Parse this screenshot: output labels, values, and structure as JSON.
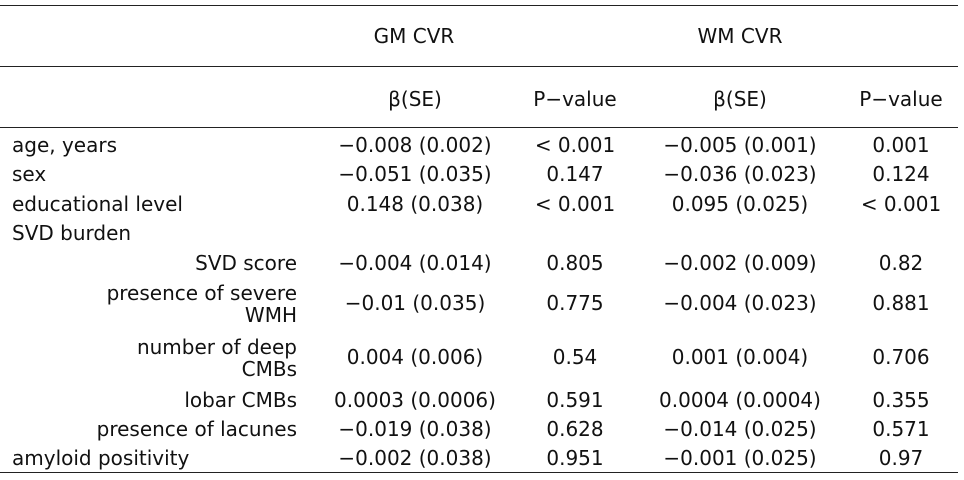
{
  "table": {
    "group_headers": [
      "GM CVR",
      "WM CVR"
    ],
    "sub_headers": [
      "β(SE)",
      "P−value",
      "β(SE)",
      "P−value"
    ],
    "rows": [
      {
        "label": "age, years",
        "gm_beta": "−0.008 (0.002)",
        "gm_p": "< 0.001",
        "wm_beta": "−0.005 (0.001)",
        "wm_p": "0.001"
      },
      {
        "label": "sex",
        "gm_beta": "−0.051 (0.035)",
        "gm_p": "0.147",
        "wm_beta": "−0.036 (0.023)",
        "wm_p": "0.124"
      },
      {
        "label": "educational level",
        "gm_beta": "0.148 (0.038)",
        "gm_p": "< 0.001",
        "wm_beta": "0.095 (0.025)",
        "wm_p": "< 0.001"
      },
      {
        "label": "SVD burden",
        "gm_beta": "",
        "gm_p": "",
        "wm_beta": "",
        "wm_p": ""
      },
      {
        "label": "SVD score",
        "gm_beta": "−0.004 (0.014)",
        "gm_p": "0.805",
        "wm_beta": "−0.002 (0.009)",
        "wm_p": "0.82"
      },
      {
        "label": "presence of severe WMH",
        "gm_beta": "−0.01 (0.035)",
        "gm_p": "0.775",
        "wm_beta": "−0.004 (0.023)",
        "wm_p": "0.881"
      },
      {
        "label": "number of deep CMBs",
        "gm_beta": "0.004 (0.006)",
        "gm_p": "0.54",
        "wm_beta": "0.001 (0.004)",
        "wm_p": "0.706"
      },
      {
        "label": "lobar CMBs",
        "gm_beta": "0.0003 (0.0006)",
        "gm_p": "0.591",
        "wm_beta": "0.0004 (0.0004)",
        "wm_p": "0.355"
      },
      {
        "label": "presence of lacunes",
        "gm_beta": "−0.019 (0.038)",
        "gm_p": "0.628",
        "wm_beta": "−0.014 (0.025)",
        "wm_p": "0.571"
      },
      {
        "label": "amyloid positivity",
        "gm_beta": "−0.002 (0.038)",
        "gm_p": "0.951",
        "wm_beta": "−0.001 (0.025)",
        "wm_p": "0.97"
      }
    ]
  }
}
